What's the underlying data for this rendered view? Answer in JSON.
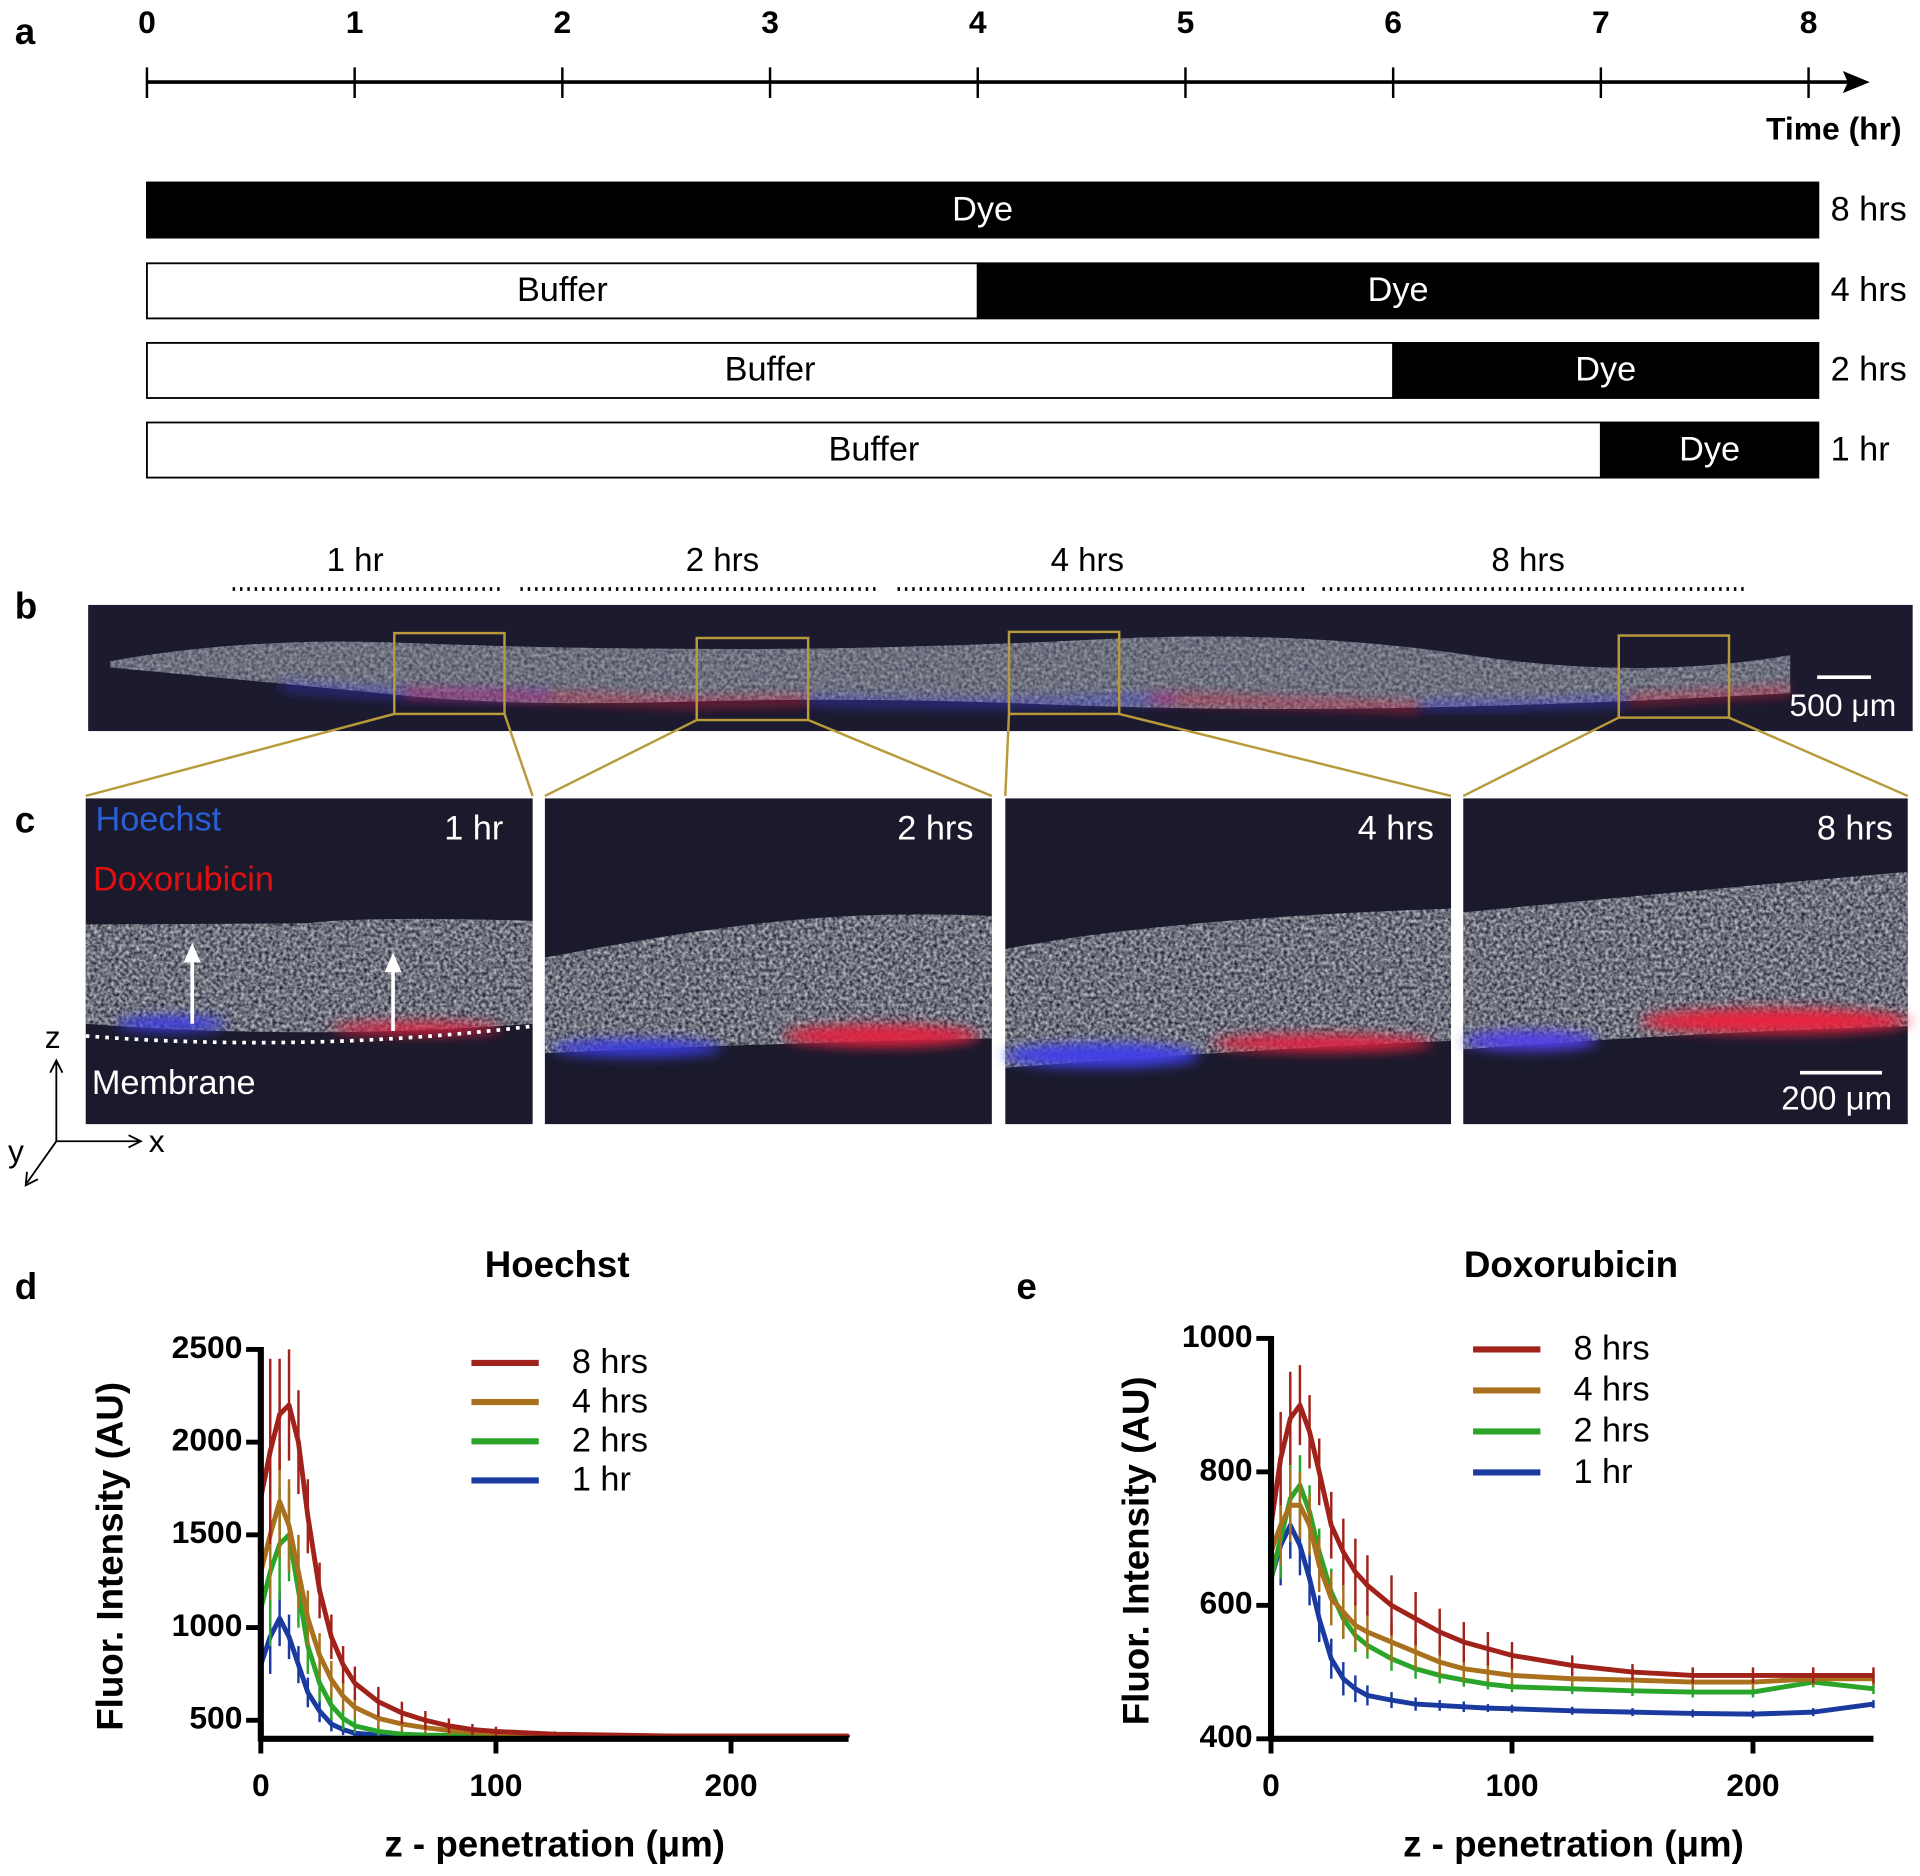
{
  "panel_labels": {
    "a": "a",
    "b": "b",
    "c": "c",
    "d": "d",
    "e": "e"
  },
  "timeline": {
    "axis_label": "Time (hr)",
    "ticks": [
      0,
      1,
      2,
      3,
      4,
      5,
      6,
      7,
      8
    ],
    "rows": [
      {
        "label": "8 hrs",
        "segments": [
          {
            "text": "Dye",
            "color": "#000000",
            "start": 0,
            "end": 8
          }
        ]
      },
      {
        "label": "4 hrs",
        "segments": [
          {
            "text": "Buffer",
            "color": "#ffffff",
            "start": 0,
            "end": 4
          },
          {
            "text": "Dye",
            "color": "#000000",
            "start": 4,
            "end": 8
          }
        ]
      },
      {
        "label": "2 hrs",
        "segments": [
          {
            "text": "Buffer",
            "color": "#ffffff",
            "start": 0,
            "end": 6
          },
          {
            "text": "Dye",
            "color": "#000000",
            "start": 6,
            "end": 8
          }
        ]
      },
      {
        "label": "1 hr",
        "segments": [
          {
            "text": "Buffer",
            "color": "#ffffff",
            "start": 0,
            "end": 7
          },
          {
            "text": "Dye",
            "color": "#000000",
            "start": 7,
            "end": 8
          }
        ]
      }
    ]
  },
  "overview": {
    "groups": [
      "1 hr",
      "2 hrs",
      "4 hrs",
      "8 hrs"
    ],
    "scale_bar": "500 μm"
  },
  "zoom": {
    "panels": [
      "1 hr",
      "2 hrs",
      "4 hrs",
      "8 hrs"
    ],
    "stain_labels": [
      "Hoechst",
      "Doxorubicin"
    ],
    "membrane": "Membrane",
    "scale_bar": "200 μm",
    "axes": [
      "z",
      "x",
      "y"
    ]
  },
  "chart_data": [
    {
      "type": "line",
      "title": "Hoechst",
      "xlabel": "z - penetration (μm)",
      "ylabel": "Fluor. Intensity (AU)",
      "x": [
        0,
        4,
        8,
        12,
        16,
        20,
        25,
        30,
        35,
        40,
        50,
        60,
        70,
        80,
        90,
        100,
        125,
        150,
        175,
        200,
        225,
        250
      ],
      "xlim": [
        0,
        250
      ],
      "ylim": [
        400,
        2500
      ],
      "xticks": [
        0,
        100,
        200
      ],
      "yticks": [
        500,
        1000,
        1500,
        2000,
        2500
      ],
      "series": [
        {
          "name": "8 hrs",
          "color": "#a0221a",
          "values": [
            1700,
            1950,
            2150,
            2200,
            2000,
            1600,
            1200,
            950,
            800,
            700,
            600,
            540,
            500,
            470,
            450,
            440,
            425,
            420,
            415,
            415,
            415,
            415
          ],
          "errors": [
            650,
            500,
            300,
            300,
            280,
            200,
            150,
            120,
            100,
            90,
            80,
            60,
            50,
            40,
            30,
            25,
            15,
            10,
            8,
            8,
            8,
            8
          ]
        },
        {
          "name": "4 hrs",
          "color": "#a9701e",
          "values": [
            1300,
            1500,
            1680,
            1550,
            1300,
            1050,
            850,
            720,
            630,
            570,
            510,
            480,
            460,
            445,
            435,
            430,
            420,
            418,
            415,
            415,
            415,
            415
          ],
          "errors": [
            400,
            350,
            300,
            250,
            200,
            150,
            120,
            100,
            80,
            60,
            50,
            40,
            30,
            25,
            20,
            15,
            10,
            8,
            6,
            6,
            6,
            6
          ]
        },
        {
          "name": "2 hrs",
          "color": "#2aa52a",
          "values": [
            1100,
            1300,
            1450,
            1500,
            1200,
            900,
            700,
            580,
            510,
            470,
            440,
            425,
            420,
            418,
            415,
            415,
            413,
            413,
            413,
            413,
            413,
            413
          ],
          "errors": [
            500,
            400,
            300,
            250,
            200,
            150,
            100,
            80,
            60,
            40,
            30,
            20,
            15,
            10,
            8,
            6,
            5,
            5,
            5,
            5,
            5,
            5
          ]
        },
        {
          "name": "1 hr",
          "color": "#1a3aa0",
          "values": [
            800,
            950,
            1050,
            950,
            800,
            650,
            550,
            480,
            450,
            430,
            420,
            415,
            413,
            412,
            412,
            412,
            412,
            412,
            412,
            412,
            412,
            412
          ],
          "errors": [
            200,
            200,
            150,
            120,
            100,
            80,
            60,
            40,
            30,
            20,
            15,
            10,
            8,
            6,
            5,
            5,
            5,
            5,
            5,
            5,
            5,
            5
          ]
        }
      ]
    },
    {
      "type": "line",
      "title": "Doxorubicin",
      "xlabel": "z - penetration (μm)",
      "ylabel": "Fluor. Intensity (AU)",
      "x": [
        0,
        4,
        8,
        12,
        16,
        20,
        25,
        30,
        35,
        40,
        50,
        60,
        70,
        80,
        90,
        100,
        125,
        150,
        175,
        200,
        225,
        250
      ],
      "xlim": [
        0,
        250
      ],
      "ylim": [
        400,
        1000
      ],
      "xticks": [
        0,
        100,
        200
      ],
      "yticks": [
        400,
        600,
        800,
        1000
      ],
      "series": [
        {
          "name": "8 hrs",
          "color": "#a0221a",
          "values": [
            720,
            820,
            880,
            900,
            860,
            800,
            720,
            680,
            650,
            630,
            600,
            580,
            560,
            545,
            535,
            525,
            510,
            500,
            495,
            495,
            495,
            495
          ],
          "errors": [
            80,
            70,
            70,
            60,
            55,
            50,
            50,
            50,
            50,
            45,
            45,
            40,
            35,
            30,
            25,
            20,
            15,
            12,
            12,
            12,
            12,
            12
          ]
        },
        {
          "name": "4 hrs",
          "color": "#a9701e",
          "values": [
            680,
            720,
            750,
            750,
            720,
            660,
            610,
            590,
            570,
            560,
            545,
            530,
            515,
            505,
            500,
            495,
            490,
            488,
            485,
            485,
            490,
            490
          ],
          "errors": [
            70,
            60,
            55,
            50,
            45,
            40,
            40,
            40,
            35,
            30,
            30,
            25,
            20,
            18,
            15,
            12,
            10,
            10,
            10,
            10,
            10,
            10
          ]
        },
        {
          "name": "2 hrs",
          "color": "#2aa52a",
          "values": [
            640,
            700,
            760,
            780,
            740,
            680,
            620,
            580,
            555,
            540,
            520,
            505,
            495,
            488,
            482,
            478,
            475,
            472,
            470,
            470,
            485,
            475
          ],
          "errors": [
            70,
            60,
            50,
            45,
            40,
            35,
            35,
            30,
            25,
            20,
            18,
            15,
            12,
            10,
            8,
            8,
            8,
            8,
            8,
            8,
            8,
            8
          ]
        },
        {
          "name": "1 hr",
          "color": "#1a3aa0",
          "values": [
            640,
            690,
            720,
            690,
            640,
            580,
            520,
            490,
            475,
            465,
            458,
            452,
            450,
            448,
            446,
            445,
            442,
            440,
            438,
            437,
            440,
            452
          ],
          "errors": [
            60,
            60,
            50,
            45,
            40,
            35,
            30,
            25,
            20,
            15,
            12,
            10,
            8,
            8,
            6,
            6,
            6,
            6,
            6,
            6,
            6,
            6
          ]
        }
      ]
    }
  ]
}
